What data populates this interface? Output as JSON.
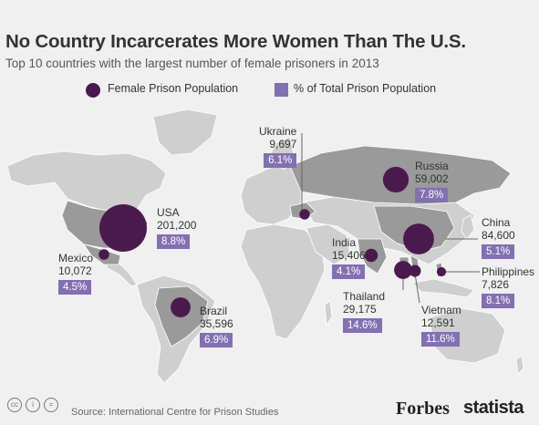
{
  "chart_data": {
    "type": "map",
    "title": "No Country Incarcerates More Women Than The U.S.",
    "subtitle": "Top 10 countries with the largest number of female prisoners in 2013",
    "legend": {
      "bubble_label": "Female Prison Population",
      "box_label": "% of Total Prison Population",
      "placement": "top"
    },
    "series": [
      {
        "country": "USA",
        "female_prisoners": 201200,
        "display": "201,200",
        "pct": "8.8%"
      },
      {
        "country": "China",
        "female_prisoners": 84600,
        "display": "84,600",
        "pct": "5.1%"
      },
      {
        "country": "Russia",
        "female_prisoners": 59002,
        "display": "59,002",
        "pct": "7.8%"
      },
      {
        "country": "Brazil",
        "female_prisoners": 35596,
        "display": "35,596",
        "pct": "6.9%"
      },
      {
        "country": "Thailand",
        "female_prisoners": 29175,
        "display": "29,175",
        "pct": "14.6%"
      },
      {
        "country": "India",
        "female_prisoners": 15406,
        "display": "15,406",
        "pct": "4.1%"
      },
      {
        "country": "Vietnam",
        "female_prisoners": 12591,
        "display": "12,591",
        "pct": "11.6%"
      },
      {
        "country": "Mexico",
        "female_prisoners": 10072,
        "display": "10,072",
        "pct": "4.5%"
      },
      {
        "country": "Ukraine",
        "female_prisoners": 9697,
        "display": "9,697",
        "pct": "6.1%"
      },
      {
        "country": "Philippines",
        "female_prisoners": 7826,
        "display": "7,826",
        "pct": "8.1%"
      }
    ],
    "colors": {
      "bubble": "#4a1a4e",
      "pct_box": "#8270b0",
      "land": "#cfcfcf",
      "highlight_land": "#9a9a9a",
      "ocean": "#f0f0f0"
    }
  },
  "footer": {
    "source": "Source: International Centre for Prison Studies",
    "forbes": "Forbes",
    "statista": "statista",
    "cc_icons": [
      "cc",
      "i",
      "="
    ]
  }
}
